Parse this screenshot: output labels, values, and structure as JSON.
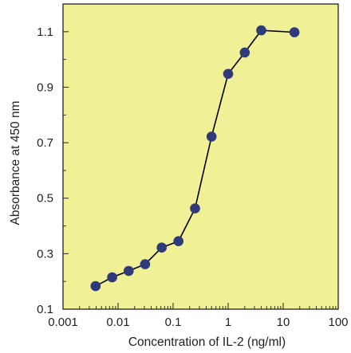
{
  "chart_data": {
    "type": "line",
    "title": "",
    "xlabel": "Concentration of IL-2 (ng/ml)",
    "ylabel": "Absorbance at 450 nm",
    "x_scale": "log",
    "xlim": [
      0.001,
      100
    ],
    "ylim": [
      0.1,
      1.2
    ],
    "x_ticks": [
      0.001,
      0.01,
      0.1,
      1,
      10,
      100
    ],
    "x_tick_labels": [
      "0.001",
      "0.01",
      "0.1",
      "1",
      "10",
      "100"
    ],
    "y_ticks": [
      0.1,
      0.3,
      0.5,
      0.7,
      0.9,
      1.1
    ],
    "y_tick_labels": [
      "0.1",
      "0.3",
      "0.5",
      "0.7",
      "0.9",
      "1.1"
    ],
    "grid": false,
    "legend": "none",
    "colors": {
      "plot_background": "#f0f096",
      "marker": "#2e3a7a",
      "line": "#000000",
      "axis": "#222222"
    },
    "series": [
      {
        "x": [
          0.0039,
          0.0078,
          0.0156,
          0.031,
          0.062,
          0.125,
          0.25,
          0.5,
          1,
          2,
          4,
          16
        ],
        "y": [
          0.183,
          0.215,
          0.238,
          0.262,
          0.322,
          0.345,
          0.463,
          0.722,
          0.948,
          1.025,
          1.105,
          1.098
        ]
      }
    ]
  }
}
